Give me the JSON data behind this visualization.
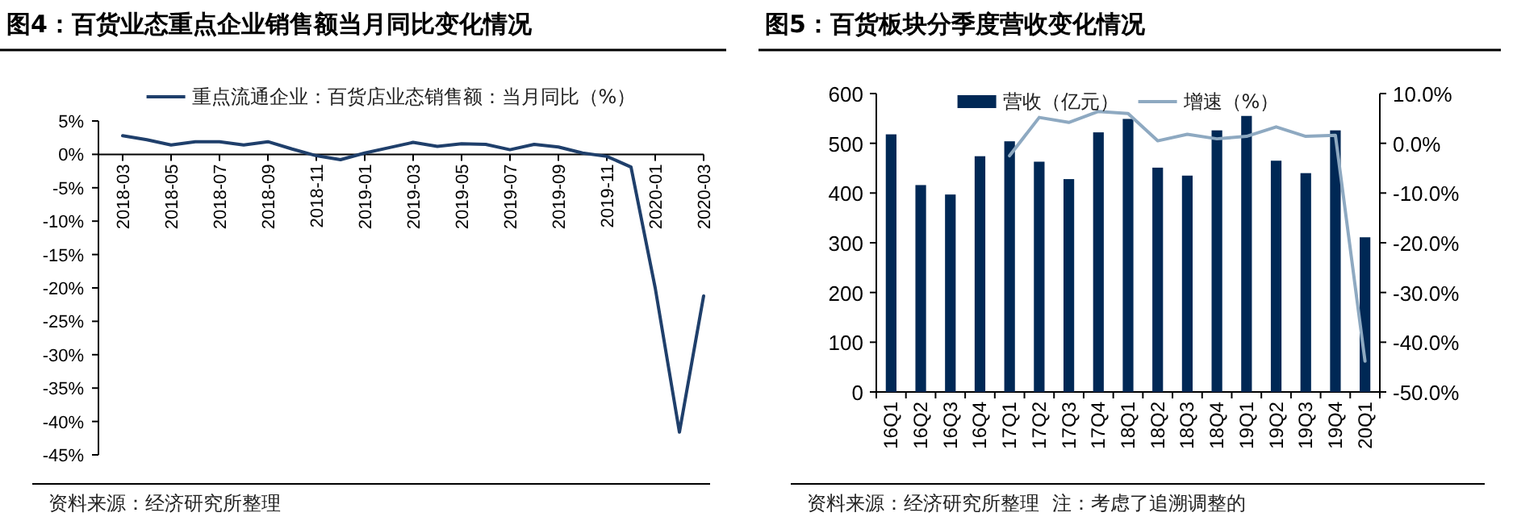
{
  "chart_data": [
    {
      "type": "line",
      "title": "图4：百货业态重点企业销售额当月同比变化情况",
      "x": [
        "2018-03",
        "2018-04",
        "2018-05",
        "2018-06",
        "2018-07",
        "2018-08",
        "2018-09",
        "2018-10",
        "2018-11",
        "2018-12",
        "2019-01",
        "2019-02",
        "2019-03",
        "2019-04",
        "2019-05",
        "2019-06",
        "2019-07",
        "2019-08",
        "2019-09",
        "2019-10",
        "2019-11",
        "2019-12",
        "2020-01",
        "2020-02",
        "2020-03"
      ],
      "series": [
        {
          "name": "重点流通企业：百货店业态销售额：当月同比（%）",
          "color": "#1f3f6b",
          "values": [
            2.8,
            2.2,
            1.4,
            1.9,
            1.9,
            1.4,
            1.9,
            0.8,
            -0.2,
            -0.8,
            0.2,
            1.0,
            1.8,
            1.2,
            1.6,
            1.5,
            0.7,
            1.5,
            1.1,
            0.2,
            -0.3,
            -1.9,
            -20,
            -41.6,
            -21.2
          ]
        }
      ],
      "xlim": [
        "2018-02",
        "2020-03"
      ],
      "xticks": [
        "2018-03",
        "2018-05",
        "2018-07",
        "2018-09",
        "2018-11",
        "2019-01",
        "2019-03",
        "2019-05",
        "2019-07",
        "2019-09",
        "2019-11",
        "2020-01",
        "2020-03"
      ],
      "ylim": [
        -45,
        5
      ],
      "yticks": [
        {
          "value": 5,
          "label": "5%"
        },
        {
          "value": 0,
          "label": "0%"
        },
        {
          "value": -5,
          "label": "-5%"
        },
        {
          "value": -10,
          "label": "-10%"
        },
        {
          "value": -15,
          "label": "-15%"
        },
        {
          "value": -20,
          "label": "-20%"
        },
        {
          "value": -25,
          "label": "-25%"
        },
        {
          "value": -30,
          "label": "-30%"
        },
        {
          "value": -35,
          "label": "-35%"
        },
        {
          "value": -40,
          "label": "-40%"
        },
        {
          "value": -45,
          "label": "-45%"
        }
      ],
      "legend": "top",
      "annotations": [
        "资料来源：经济研究所整理"
      ]
    },
    {
      "type": "bar",
      "title": "图5：百货板块分季度营收变化情况",
      "categories": [
        "16Q1",
        "16Q2",
        "16Q3",
        "16Q4",
        "17Q1",
        "17Q2",
        "17Q3",
        "17Q4",
        "18Q1",
        "18Q2",
        "18Q3",
        "18Q4",
        "19Q1",
        "19Q2",
        "19Q3",
        "19Q4",
        "20Q1"
      ],
      "series": [
        {
          "name": "营收（亿元）",
          "color": "#002855",
          "values": [
            518,
            416,
            397,
            474,
            504,
            463,
            428,
            522,
            549,
            451,
            435,
            526,
            555,
            465,
            440,
            526,
            311
          ]
        },
        {
          "name": "增速（%）",
          "type": "line",
          "axis": "y2",
          "color": "#8ea9c1",
          "values": [
            null,
            null,
            null,
            null,
            -2.5,
            5.2,
            4.2,
            6.4,
            6.0,
            0.5,
            1.8,
            0.9,
            1.4,
            3.3,
            1.4,
            1.6,
            -43.8
          ]
        }
      ],
      "ylim": [
        0,
        600
      ],
      "yticks": [
        0,
        100,
        200,
        300,
        400,
        500,
        600
      ],
      "y2lim": [
        -50,
        10
      ],
      "y2ticks": [
        {
          "value": 10,
          "label": "10.0%"
        },
        {
          "value": 0,
          "label": "0.0%"
        },
        {
          "value": -10,
          "label": "-10.0%"
        },
        {
          "value": -20,
          "label": "-20.0%"
        },
        {
          "value": -30,
          "label": "-30.0%"
        },
        {
          "value": -40,
          "label": "-40.0%"
        },
        {
          "value": -50,
          "label": "-50.0%"
        }
      ],
      "legend": "top",
      "annotations": [
        "资料来源：经济研究所整理",
        "注：考虑了追溯调整的"
      ]
    }
  ]
}
